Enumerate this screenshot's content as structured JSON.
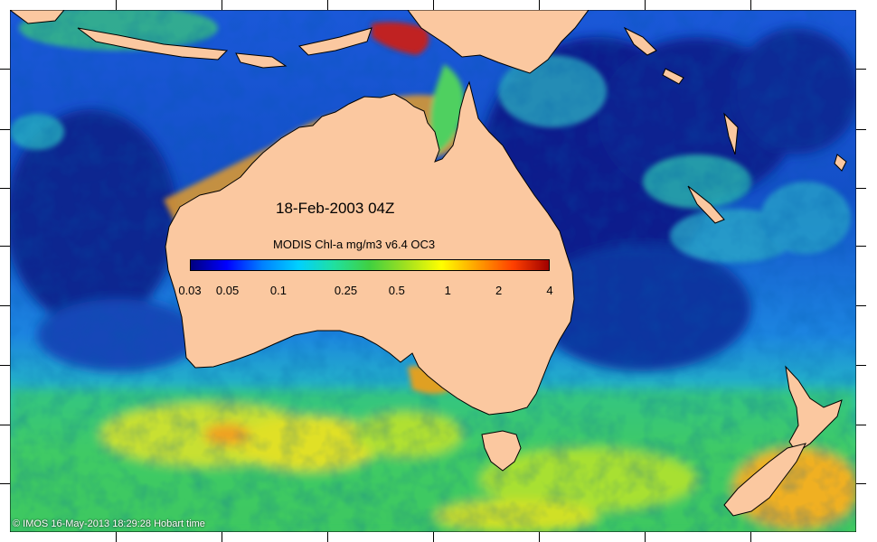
{
  "map": {
    "date_label": "18-Feb-2003 04Z",
    "colorbar": {
      "title": "MODIS Chl-a mg/m3 v6.4 OC3",
      "scale": "log",
      "range": [
        0.03,
        4
      ],
      "ticks": [
        "0.03",
        "0.05",
        "0.1",
        "0.25",
        "0.5",
        "1",
        "2",
        "4"
      ],
      "colors": [
        "#00007f",
        "#0000ff",
        "#0080ff",
        "#00d0ff",
        "#20e0a0",
        "#40d040",
        "#a0e020",
        "#ffff00",
        "#ffa000",
        "#ff4000",
        "#a00000"
      ]
    },
    "colors": {
      "land": "#fbc8a0",
      "ocean_deep": "#0a1e8c",
      "ocean_mid": "#1e64e0",
      "ocean_green": "#2cc890",
      "ocean_yellow": "#d8e030"
    },
    "copyright": "© IMOS 16-May-2013 18:29:28 Hobart time"
  }
}
